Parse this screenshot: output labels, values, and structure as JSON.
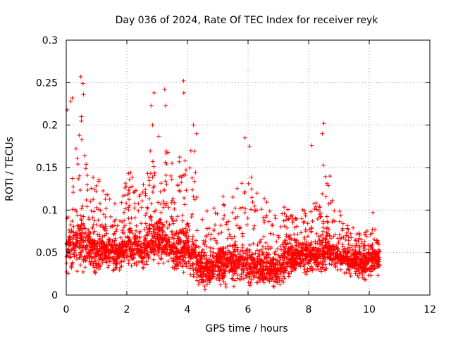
{
  "chart_data": {
    "type": "scatter",
    "title": "Day 036 of 2024, Rate Of TEC Index for receiver reyk",
    "xlabel": "GPS time / hours",
    "ylabel": "ROTI / TECUs",
    "xlim": [
      0,
      12
    ],
    "ylim": [
      0,
      0.3
    ],
    "x_ticks": [
      0,
      2,
      4,
      6,
      8,
      10,
      12
    ],
    "x_tick_labels": [
      "0",
      "2",
      "4",
      "6",
      "8",
      "10",
      "12"
    ],
    "y_ticks": [
      0,
      0.05,
      0.1,
      0.15,
      0.2,
      0.25,
      0.3
    ],
    "y_tick_labels": [
      "0",
      "0.05",
      "0.1",
      "0.15",
      "0.2",
      "0.25",
      "0.3"
    ],
    "grid": true,
    "marker": "+",
    "color": "#ff0000",
    "data_x_range": [
      0,
      10.35
    ],
    "notable_points": [
      {
        "x": 0.03,
        "y": 0.218
      },
      {
        "x": 0.15,
        "y": 0.228
      },
      {
        "x": 0.2,
        "y": 0.232
      },
      {
        "x": 0.48,
        "y": 0.257
      },
      {
        "x": 0.55,
        "y": 0.249
      },
      {
        "x": 0.57,
        "y": 0.236
      },
      {
        "x": 0.5,
        "y": 0.21
      },
      {
        "x": 2.9,
        "y": 0.238
      },
      {
        "x": 2.8,
        "y": 0.223
      },
      {
        "x": 2.85,
        "y": 0.2
      },
      {
        "x": 3.25,
        "y": 0.242
      },
      {
        "x": 3.28,
        "y": 0.223
      },
      {
        "x": 3.87,
        "y": 0.252
      },
      {
        "x": 3.88,
        "y": 0.238
      },
      {
        "x": 4.2,
        "y": 0.2
      },
      {
        "x": 4.3,
        "y": 0.19
      },
      {
        "x": 5.9,
        "y": 0.185
      },
      {
        "x": 6.05,
        "y": 0.175
      },
      {
        "x": 8.1,
        "y": 0.176
      },
      {
        "x": 8.5,
        "y": 0.202
      },
      {
        "x": 8.45,
        "y": 0.19
      },
      {
        "x": 8.7,
        "y": 0.14
      },
      {
        "x": 10.12,
        "y": 0.097
      }
    ],
    "envelope": {
      "hours": [
        0,
        0.25,
        0.5,
        0.75,
        1,
        1.25,
        1.5,
        1.75,
        2,
        2.25,
        2.5,
        2.75,
        3,
        3.25,
        3.5,
        3.75,
        4,
        4.25,
        4.5,
        4.75,
        5,
        5.25,
        5.5,
        5.75,
        6,
        6.25,
        6.5,
        6.75,
        7,
        7.25,
        7.5,
        7.75,
        8,
        8.25,
        8.5,
        8.75,
        9,
        9.25,
        9.5,
        9.75,
        10,
        10.35
      ],
      "upper": [
        0.12,
        0.16,
        0.21,
        0.17,
        0.14,
        0.13,
        0.12,
        0.1,
        0.15,
        0.14,
        0.13,
        0.17,
        0.19,
        0.18,
        0.16,
        0.17,
        0.17,
        0.17,
        0.1,
        0.1,
        0.11,
        0.12,
        0.14,
        0.13,
        0.16,
        0.12,
        0.12,
        0.1,
        0.09,
        0.11,
        0.09,
        0.1,
        0.11,
        0.13,
        0.16,
        0.12,
        0.1,
        0.09,
        0.08,
        0.07,
        0.08,
        0.08
      ],
      "lower": [
        0.02,
        0.015,
        0.015,
        0.02,
        0.02,
        0.025,
        0.025,
        0.02,
        0.025,
        0.025,
        0.02,
        0.02,
        0.03,
        0.025,
        0.025,
        0.02,
        0.02,
        0.01,
        0.005,
        0.005,
        0.005,
        0.005,
        0.005,
        0.005,
        0.005,
        0.005,
        0.005,
        0.005,
        0.005,
        0.005,
        0.02,
        0.02,
        0.02,
        0.02,
        0.02,
        0.025,
        0.025,
        0.02,
        0.02,
        0.01,
        0.015,
        0.02
      ],
      "center": [
        0.05,
        0.055,
        0.06,
        0.055,
        0.05,
        0.05,
        0.05,
        0.045,
        0.055,
        0.055,
        0.05,
        0.055,
        0.065,
        0.06,
        0.055,
        0.055,
        0.055,
        0.04,
        0.03,
        0.03,
        0.035,
        0.035,
        0.04,
        0.035,
        0.035,
        0.03,
        0.03,
        0.03,
        0.03,
        0.04,
        0.045,
        0.045,
        0.045,
        0.045,
        0.05,
        0.05,
        0.045,
        0.04,
        0.04,
        0.035,
        0.04,
        0.045
      ]
    },
    "generated_point_count": 3200
  }
}
